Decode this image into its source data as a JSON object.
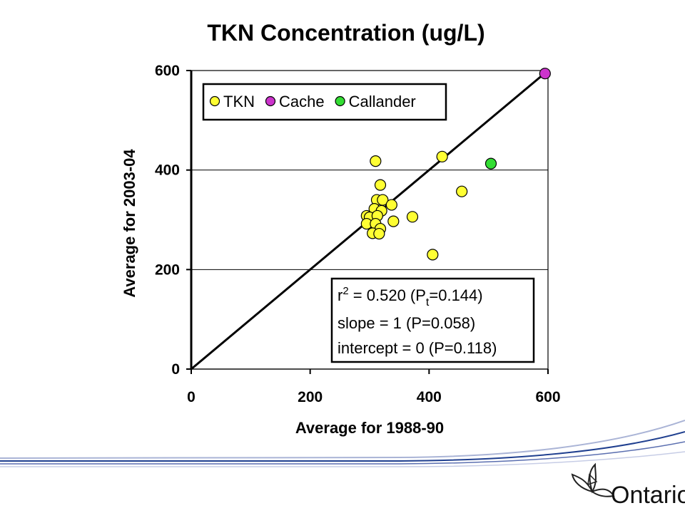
{
  "chart_data": {
    "type": "scatter",
    "title": "TKN Concentration (ug/L)",
    "xlabel": "Average for 1988-90",
    "ylabel": "Average for 2003-04",
    "xlim": [
      0,
      600
    ],
    "ylim": [
      0,
      600
    ],
    "xticks": [
      "0",
      "200",
      "400",
      "600"
    ],
    "yticks": [
      "0",
      "200",
      "400",
      "600"
    ],
    "grid": "horizontal",
    "legend_position": "top-left",
    "reference_line": {
      "type": "1:1",
      "from": [
        0,
        0
      ],
      "to": [
        600,
        600
      ]
    },
    "series": [
      {
        "name": "TKN",
        "color": "#ffff33",
        "points": [
          [
            310,
            418
          ],
          [
            422,
            427
          ],
          [
            318,
            370
          ],
          [
            455,
            357
          ],
          [
            312,
            340
          ],
          [
            322,
            340
          ],
          [
            337,
            330
          ],
          [
            308,
            322
          ],
          [
            320,
            318
          ],
          [
            295,
            308
          ],
          [
            300,
            305
          ],
          [
            313,
            308
          ],
          [
            372,
            306
          ],
          [
            340,
            297
          ],
          [
            295,
            292
          ],
          [
            310,
            292
          ],
          [
            318,
            282
          ],
          [
            305,
            273
          ],
          [
            316,
            272
          ],
          [
            406,
            230
          ]
        ]
      },
      {
        "name": "Cache",
        "color": "#cc33cc",
        "points": [
          [
            595,
            594
          ]
        ]
      },
      {
        "name": "Callander",
        "color": "#33dd33",
        "points": [
          [
            504,
            413
          ]
        ]
      }
    ],
    "stats": {
      "line1_prefix": "r",
      "line1_sup": "2",
      "line1_mid": " = 0.520  (P",
      "line1_sub": "t",
      "line1_end": "=0.144)",
      "line2": "slope = 1 (P=0.058)",
      "line3": "intercept = 0 (P=0.118)"
    }
  },
  "footer": {
    "logo_text": "Ontario",
    "accent_color": "#1f3f8f"
  }
}
